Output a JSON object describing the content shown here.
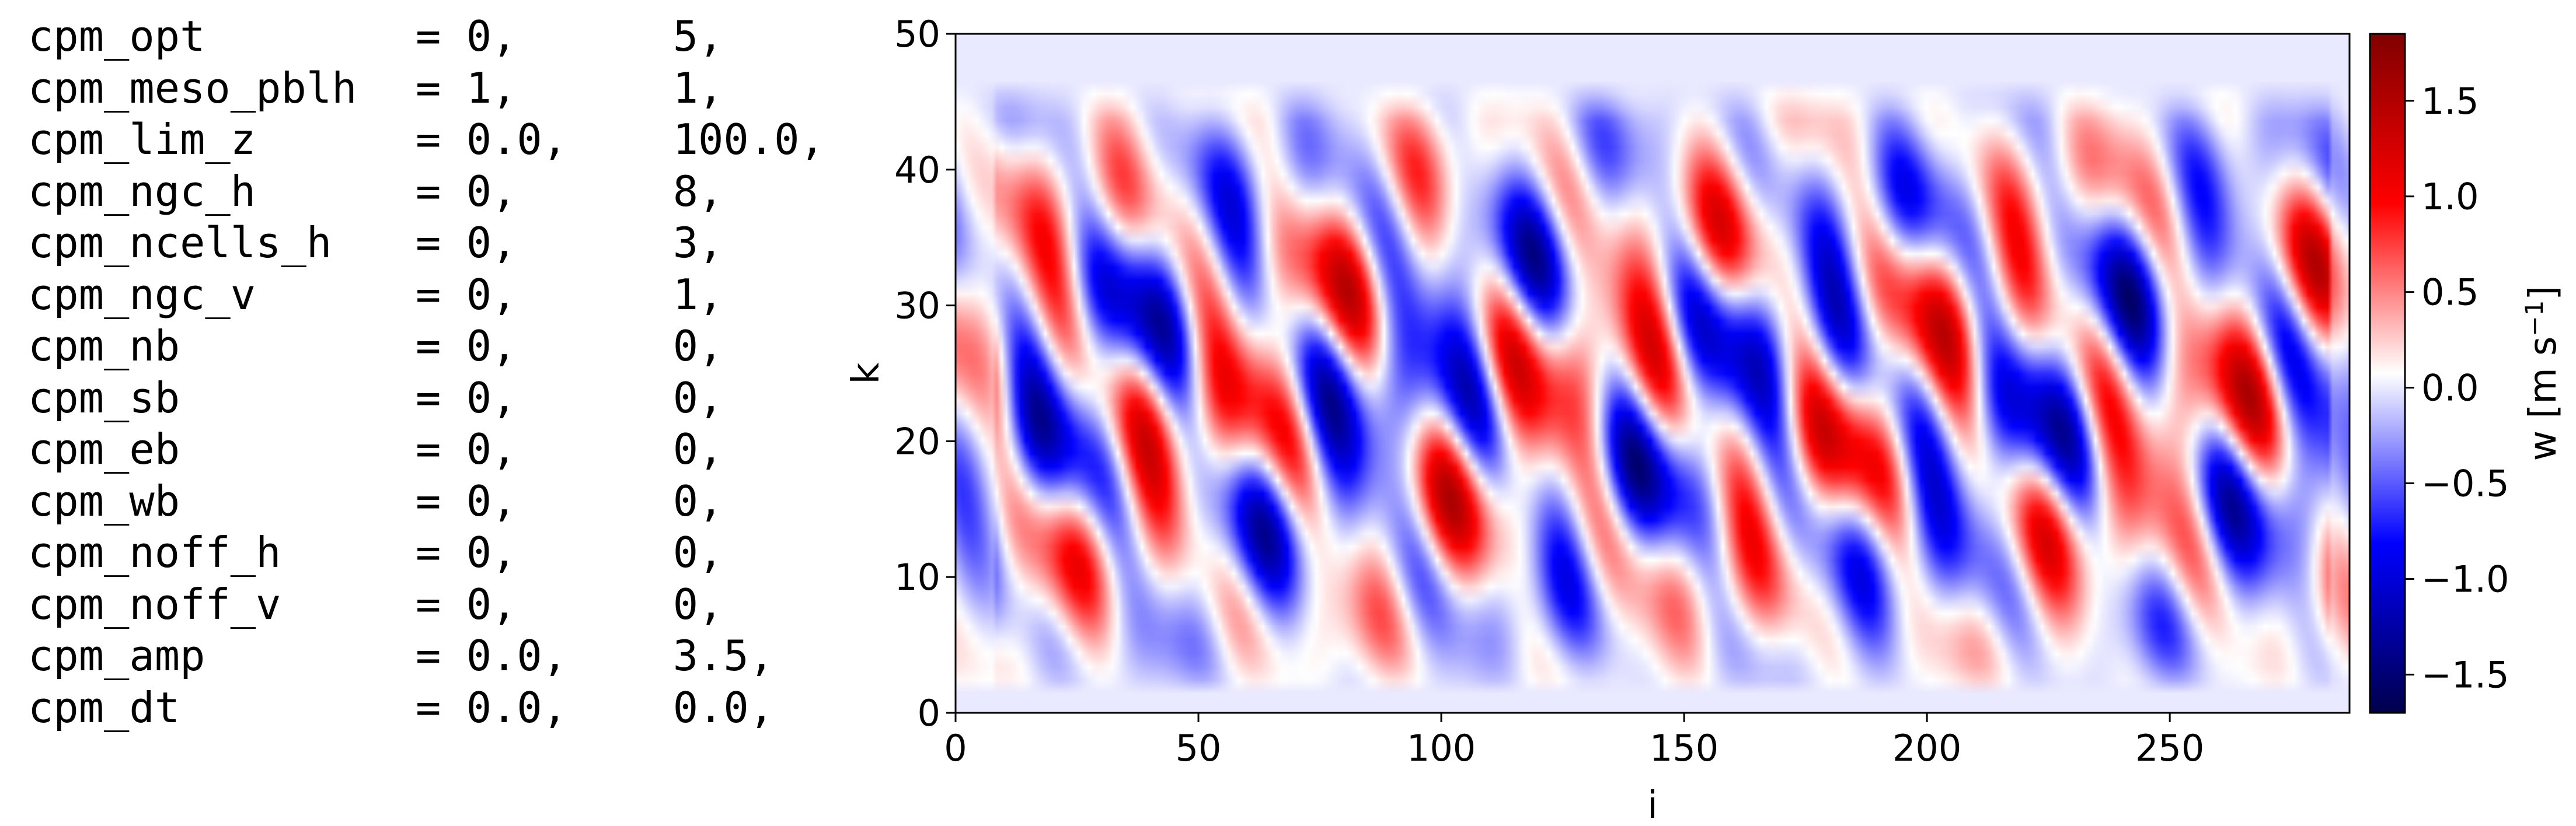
{
  "namelist": [
    {
      "key": "cpm_opt",
      "v1": "0,",
      "v2": "5,"
    },
    {
      "key": "cpm_meso_pblh",
      "v1": "1,",
      "v2": "1,"
    },
    {
      "key": "cpm_lim_z",
      "v1": "0.0,",
      "v2": "100.0,"
    },
    {
      "key": "cpm_ngc_h",
      "v1": "0,",
      "v2": "8,"
    },
    {
      "key": "cpm_ncells_h",
      "v1": "0,",
      "v2": "3,"
    },
    {
      "key": "cpm_ngc_v",
      "v1": "0,",
      "v2": "1,"
    },
    {
      "key": "cpm_nb",
      "v1": "0,",
      "v2": "0,"
    },
    {
      "key": "cpm_sb",
      "v1": "0,",
      "v2": "0,"
    },
    {
      "key": "cpm_eb",
      "v1": "0,",
      "v2": "0,"
    },
    {
      "key": "cpm_wb",
      "v1": "0,",
      "v2": "0,"
    },
    {
      "key": "cpm_noff_h",
      "v1": "0,",
      "v2": "0,"
    },
    {
      "key": "cpm_noff_v",
      "v1": "0,",
      "v2": "0,"
    },
    {
      "key": "cpm_amp",
      "v1": "0.0,",
      "v2": "3.5,"
    },
    {
      "key": "cpm_dt",
      "v1": "0.0,",
      "v2": "0.0,"
    }
  ],
  "chart_data": {
    "type": "heatmap",
    "title": "",
    "xlabel": "i",
    "ylabel": "k",
    "xlim": [
      0,
      287
    ],
    "ylim": [
      0,
      50
    ],
    "xticks": [
      0,
      50,
      100,
      150,
      200,
      250
    ],
    "yticks": [
      0,
      10,
      20,
      30,
      40,
      50
    ],
    "colormap": "seismic",
    "colorbar": {
      "label": "w [m s",
      "label_superscript": "−1",
      "label_close": "]",
      "range": [
        -1.7,
        1.85
      ],
      "ticks": [
        -1.5,
        -1.0,
        -0.5,
        0.0,
        0.5,
        1.0,
        1.5
      ],
      "tick_labels": [
        "−1.5",
        "−1.0",
        "−0.5",
        "0.0",
        "0.5",
        "1.0",
        "1.5"
      ]
    },
    "field_grid": {
      "nx": 288,
      "nk": 51
    }
  }
}
